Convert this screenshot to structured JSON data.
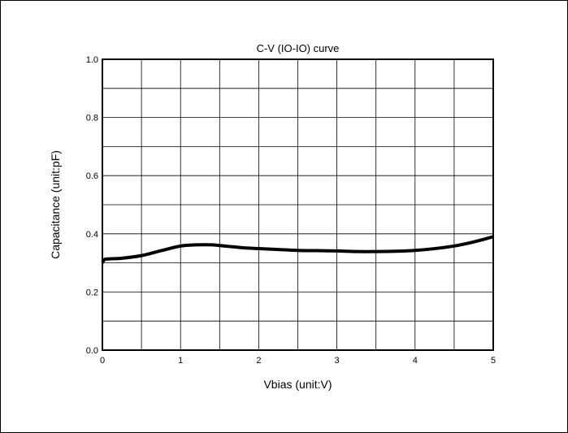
{
  "chart_data": {
    "type": "line",
    "title": "C-V (IO-IO) curve",
    "xlabel": "Vbias (unit:V)",
    "ylabel": "Capacitance (unit:pF)",
    "xlim": [
      0,
      5
    ],
    "ylim": [
      0.0,
      1.0
    ],
    "x_ticks": [
      "0",
      "1",
      "2",
      "3",
      "4",
      "5"
    ],
    "y_ticks": [
      "0.0",
      "0.2",
      "0.4",
      "0.6",
      "0.8",
      "1.0"
    ],
    "grid": true,
    "series": [
      {
        "x": [
          0,
          0.03,
          0.1,
          0.25,
          0.5,
          0.75,
          1.0,
          1.2,
          1.4,
          1.6,
          1.8,
          2.0,
          2.25,
          2.5,
          2.75,
          3.0,
          3.25,
          3.5,
          3.75,
          4.0,
          4.25,
          4.5,
          4.75,
          5.0
        ],
        "y": [
          0.3,
          0.312,
          0.314,
          0.316,
          0.325,
          0.342,
          0.358,
          0.362,
          0.362,
          0.357,
          0.352,
          0.349,
          0.346,
          0.343,
          0.342,
          0.341,
          0.339,
          0.339,
          0.34,
          0.343,
          0.349,
          0.358,
          0.372,
          0.39
        ],
        "color": "#000000"
      }
    ]
  }
}
